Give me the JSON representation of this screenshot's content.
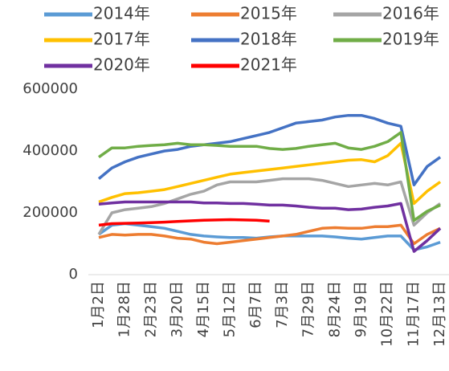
{
  "chart_data": {
    "type": "line",
    "categories": [
      "1月2日",
      null,
      "1月28日",
      null,
      "2月23日",
      null,
      "3月20日",
      null,
      "4月15日",
      null,
      "5月12日",
      null,
      "6月7日",
      null,
      "7月3日",
      null,
      "7月29日",
      null,
      "8月24日",
      null,
      "9月19日",
      null,
      "10月22日",
      null,
      "11月17日",
      null,
      "12月13日"
    ],
    "ylim": [
      0,
      600000
    ],
    "yticks": [
      0,
      200000,
      400000,
      600000
    ],
    "series": [
      {
        "name": "2014年",
        "color": "#5b9bd5",
        "values": [
          130000,
          160000,
          165000,
          160000,
          155000,
          150000,
          140000,
          130000,
          125000,
          122000,
          120000,
          120000,
          118000,
          122000,
          125000,
          125000,
          125000,
          125000,
          122000,
          118000,
          115000,
          120000,
          125000,
          125000,
          80000,
          90000,
          105000
        ]
      },
      {
        "name": "2015年",
        "color": "#ed7d31",
        "values": [
          120000,
          130000,
          128000,
          130000,
          130000,
          125000,
          118000,
          115000,
          105000,
          100000,
          105000,
          110000,
          115000,
          120000,
          125000,
          130000,
          140000,
          150000,
          152000,
          150000,
          150000,
          155000,
          155000,
          160000,
          100000,
          130000,
          150000
        ]
      },
      {
        "name": "2016年",
        "color": "#a5a5a5",
        "values": [
          130000,
          200000,
          210000,
          215000,
          220000,
          230000,
          245000,
          260000,
          270000,
          290000,
          300000,
          300000,
          300000,
          305000,
          310000,
          310000,
          310000,
          305000,
          295000,
          285000,
          290000,
          295000,
          290000,
          300000,
          160000,
          200000,
          230000
        ]
      },
      {
        "name": "2017年",
        "color": "#ffc000",
        "values": [
          235000,
          250000,
          262000,
          265000,
          270000,
          275000,
          285000,
          295000,
          305000,
          315000,
          325000,
          330000,
          335000,
          340000,
          345000,
          350000,
          355000,
          360000,
          365000,
          370000,
          372000,
          365000,
          385000,
          425000,
          230000,
          270000,
          300000
        ]
      },
      {
        "name": "2018年",
        "color": "#4472c4",
        "values": [
          310000,
          345000,
          365000,
          380000,
          390000,
          400000,
          405000,
          415000,
          420000,
          425000,
          430000,
          440000,
          450000,
          460000,
          475000,
          490000,
          495000,
          500000,
          510000,
          515000,
          515000,
          505000,
          490000,
          480000,
          290000,
          350000,
          380000
        ]
      },
      {
        "name": "2019年",
        "color": "#70ad47",
        "values": [
          380000,
          410000,
          410000,
          415000,
          418000,
          420000,
          425000,
          420000,
          420000,
          418000,
          415000,
          415000,
          415000,
          408000,
          405000,
          408000,
          415000,
          420000,
          425000,
          410000,
          405000,
          415000,
          430000,
          460000,
          175000,
          205000,
          225000
        ]
      },
      {
        "name": "2020年",
        "color": "#7030a0",
        "values": [
          228000,
          232000,
          235000,
          235000,
          235000,
          235000,
          235000,
          235000,
          232000,
          232000,
          230000,
          230000,
          228000,
          225000,
          225000,
          222000,
          218000,
          215000,
          215000,
          210000,
          212000,
          218000,
          222000,
          230000,
          75000,
          110000,
          150000
        ]
      },
      {
        "name": "2021年",
        "color": "#ff0000",
        "values": [
          160000,
          165000,
          166000,
          167000,
          168000,
          170000,
          172000,
          174000,
          176000,
          177000,
          178000,
          177000,
          176000,
          173000,
          null,
          null,
          null,
          null,
          null,
          null,
          null,
          null,
          null,
          null,
          null,
          null,
          null
        ]
      }
    ]
  }
}
